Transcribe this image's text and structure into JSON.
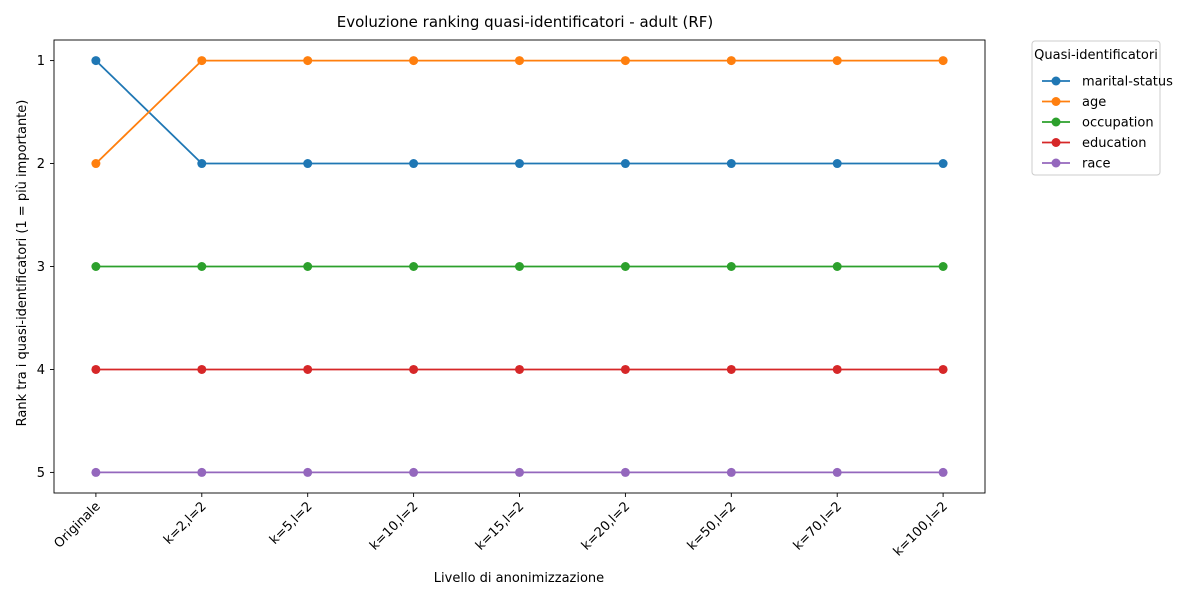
{
  "chart_data": {
    "type": "line",
    "title": "Evoluzione ranking quasi-identificatori - adult (RF)",
    "xlabel": "Livello di anonimizzazione",
    "ylabel": "Rank tra i quasi-identificatori (1 = più importante)",
    "categories": [
      "Originale",
      "k=2,l=2",
      "k=5,l=2",
      "k=10,l=2",
      "k=15,l=2",
      "k=20,l=2",
      "k=50,l=2",
      "k=70,l=2",
      "k=100,l=2"
    ],
    "y_ticks": [
      1,
      2,
      3,
      4,
      5
    ],
    "ylim": [
      5.2,
      0.8
    ],
    "y_inverted": true,
    "grid": false,
    "legend": {
      "title": "Quasi-identificatori",
      "placement": "outside-top-right"
    },
    "series": [
      {
        "name": "marital-status",
        "color": "#1f77b4",
        "values": [
          1,
          2,
          2,
          2,
          2,
          2,
          2,
          2,
          2
        ]
      },
      {
        "name": "age",
        "color": "#ff7f0e",
        "values": [
          2,
          1,
          1,
          1,
          1,
          1,
          1,
          1,
          1
        ]
      },
      {
        "name": "occupation",
        "color": "#2ca02c",
        "values": [
          3,
          3,
          3,
          3,
          3,
          3,
          3,
          3,
          3
        ]
      },
      {
        "name": "education",
        "color": "#d62728",
        "values": [
          4,
          4,
          4,
          4,
          4,
          4,
          4,
          4,
          4
        ]
      },
      {
        "name": "race",
        "color": "#9467bd",
        "values": [
          5,
          5,
          5,
          5,
          5,
          5,
          5,
          5,
          5
        ]
      }
    ]
  }
}
